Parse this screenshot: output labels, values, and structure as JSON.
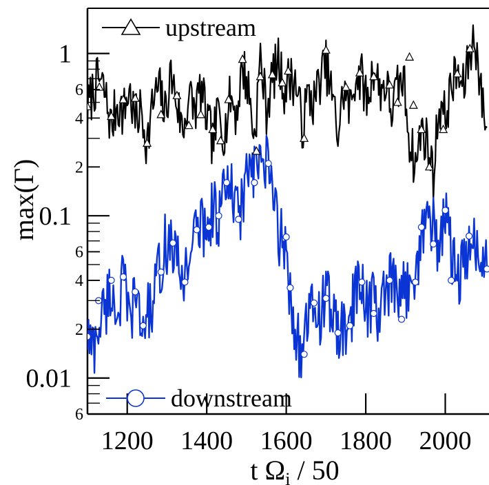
{
  "chart_data": {
    "type": "line",
    "xlabel": "t Ω",
    "xlabel_sub": "i",
    "xlabel_tail": " / 50",
    "ylabel": "max(Γ)",
    "xlim": [
      1100,
      2110
    ],
    "ylim": [
      0.006,
      1.9
    ],
    "yscale": "log",
    "grid": false,
    "legend": "inside-top-left and inside-bottom-left",
    "x_ticks": [
      {
        "value": 1200,
        "label": "1200"
      },
      {
        "value": 1400,
        "label": "1400"
      },
      {
        "value": 1600,
        "label": "1600"
      },
      {
        "value": 1800,
        "label": "1800"
      },
      {
        "value": 2000,
        "label": "2000"
      }
    ],
    "y_major_ticks": [
      {
        "value": 0.01,
        "label": "0.01"
      },
      {
        "value": 0.1,
        "label": "0.1"
      },
      {
        "value": 1,
        "label": "1"
      }
    ],
    "y_minor_ticks": [
      {
        "value": 0.006,
        "label": "6"
      },
      {
        "value": 0.02,
        "label": "2"
      },
      {
        "value": 0.04,
        "label": "4"
      },
      {
        "value": 0.06,
        "label": "6"
      },
      {
        "value": 0.2,
        "label": "2"
      },
      {
        "value": 0.4,
        "label": "4"
      },
      {
        "value": 0.6,
        "label": "6"
      }
    ],
    "series": [
      {
        "name": "upstream",
        "color": "#000000",
        "marker": "triangle",
        "x": [
          1100,
          1115,
          1130,
          1145,
          1160,
          1175,
          1190,
          1205,
          1220,
          1235,
          1250,
          1265,
          1280,
          1295,
          1310,
          1325,
          1340,
          1355,
          1370,
          1385,
          1400,
          1415,
          1430,
          1445,
          1460,
          1475,
          1490,
          1505,
          1520,
          1535,
          1550,
          1565,
          1580,
          1595,
          1610,
          1625,
          1640,
          1655,
          1670,
          1685,
          1700,
          1715,
          1730,
          1745,
          1760,
          1775,
          1790,
          1805,
          1820,
          1835,
          1850,
          1865,
          1880,
          1895,
          1910,
          1925,
          1940,
          1955,
          1970,
          1985,
          2000,
          2015,
          2030,
          2045,
          2060,
          2075,
          2090,
          2105
        ],
        "values": [
          0.45,
          0.6,
          0.7,
          0.55,
          0.35,
          0.5,
          0.42,
          0.6,
          0.38,
          0.45,
          0.28,
          0.5,
          0.62,
          0.42,
          0.75,
          0.5,
          0.33,
          0.55,
          0.45,
          0.6,
          0.4,
          0.28,
          0.45,
          0.32,
          0.55,
          0.42,
          0.85,
          0.6,
          0.3,
          0.95,
          0.45,
          0.7,
          0.9,
          0.6,
          0.72,
          0.65,
          0.35,
          0.55,
          0.5,
          0.7,
          0.85,
          0.55,
          0.32,
          0.6,
          0.45,
          0.75,
          0.7,
          0.5,
          0.85,
          0.6,
          0.65,
          0.45,
          0.6,
          0.7,
          0.3,
          0.2,
          0.35,
          0.28,
          0.18,
          0.5,
          0.4,
          0.62,
          0.75,
          0.6,
          0.95,
          1.3,
          0.55,
          0.35
        ]
      },
      {
        "name": "downstream",
        "color": "#0a35d4",
        "marker": "circle",
        "x": [
          1100,
          1115,
          1130,
          1145,
          1160,
          1175,
          1190,
          1205,
          1220,
          1235,
          1250,
          1265,
          1280,
          1295,
          1310,
          1325,
          1340,
          1355,
          1370,
          1385,
          1400,
          1415,
          1430,
          1445,
          1460,
          1475,
          1490,
          1505,
          1520,
          1535,
          1550,
          1565,
          1580,
          1595,
          1610,
          1625,
          1640,
          1655,
          1670,
          1685,
          1700,
          1715,
          1730,
          1745,
          1760,
          1775,
          1790,
          1805,
          1820,
          1835,
          1850,
          1865,
          1880,
          1895,
          1910,
          1925,
          1940,
          1955,
          1970,
          1985,
          2000,
          2015,
          2030,
          2045,
          2060,
          2075,
          2090,
          2105
        ],
        "values": [
          0.018,
          0.015,
          0.022,
          0.028,
          0.035,
          0.025,
          0.04,
          0.022,
          0.033,
          0.02,
          0.025,
          0.028,
          0.045,
          0.065,
          0.07,
          0.05,
          0.04,
          0.06,
          0.075,
          0.09,
          0.085,
          0.11,
          0.1,
          0.14,
          0.15,
          0.1,
          0.12,
          0.2,
          0.17,
          0.22,
          0.2,
          0.15,
          0.08,
          0.065,
          0.035,
          0.018,
          0.014,
          0.022,
          0.028,
          0.025,
          0.032,
          0.025,
          0.02,
          0.018,
          0.022,
          0.035,
          0.038,
          0.028,
          0.03,
          0.025,
          0.032,
          0.04,
          0.028,
          0.035,
          0.038,
          0.05,
          0.07,
          0.11,
          0.085,
          0.065,
          0.1,
          0.06,
          0.04,
          0.05,
          0.055,
          0.075,
          0.05,
          0.045
        ]
      }
    ],
    "upstream_markers": [
      {
        "x": 1100,
        "y": 0.47
      },
      {
        "x": 1130,
        "y": 0.62
      },
      {
        "x": 1160,
        "y": 0.41
      },
      {
        "x": 1190,
        "y": 0.52
      },
      {
        "x": 1220,
        "y": 0.53
      },
      {
        "x": 1250,
        "y": 0.28
      },
      {
        "x": 1285,
        "y": 0.42
      },
      {
        "x": 1325,
        "y": 0.55
      },
      {
        "x": 1355,
        "y": 0.36
      },
      {
        "x": 1385,
        "y": 0.42
      },
      {
        "x": 1415,
        "y": 0.34
      },
      {
        "x": 1435,
        "y": 0.29
      },
      {
        "x": 1455,
        "y": 0.52
      },
      {
        "x": 1490,
        "y": 0.92
      },
      {
        "x": 1525,
        "y": 0.25
      },
      {
        "x": 1535,
        "y": 0.72
      },
      {
        "x": 1565,
        "y": 0.74
      },
      {
        "x": 1590,
        "y": 0.66
      },
      {
        "x": 1605,
        "y": 0.78
      },
      {
        "x": 1645,
        "y": 0.3
      },
      {
        "x": 1700,
        "y": 1.05
      },
      {
        "x": 1750,
        "y": 0.62
      },
      {
        "x": 1785,
        "y": 0.76
      },
      {
        "x": 1820,
        "y": 0.72
      },
      {
        "x": 1860,
        "y": 0.64
      },
      {
        "x": 1880,
        "y": 0.5
      },
      {
        "x": 1910,
        "y": 0.95
      },
      {
        "x": 1920,
        "y": 0.48
      },
      {
        "x": 1940,
        "y": 0.34
      },
      {
        "x": 1960,
        "y": 0.2
      },
      {
        "x": 1995,
        "y": 0.34
      },
      {
        "x": 2030,
        "y": 0.75
      },
      {
        "x": 2062,
        "y": 1.07
      }
    ],
    "downstream_markers": [
      {
        "x": 1100,
        "y": 0.018
      },
      {
        "x": 1128,
        "y": 0.03
      },
      {
        "x": 1160,
        "y": 0.04
      },
      {
        "x": 1190,
        "y": 0.042
      },
      {
        "x": 1220,
        "y": 0.034
      },
      {
        "x": 1240,
        "y": 0.021
      },
      {
        "x": 1285,
        "y": 0.045
      },
      {
        "x": 1315,
        "y": 0.068
      },
      {
        "x": 1345,
        "y": 0.039
      },
      {
        "x": 1375,
        "y": 0.082
      },
      {
        "x": 1405,
        "y": 0.085
      },
      {
        "x": 1430,
        "y": 0.1
      },
      {
        "x": 1450,
        "y": 0.16
      },
      {
        "x": 1480,
        "y": 0.095
      },
      {
        "x": 1520,
        "y": 0.16
      },
      {
        "x": 1555,
        "y": 0.21
      },
      {
        "x": 1600,
        "y": 0.074
      },
      {
        "x": 1610,
        "y": 0.036
      },
      {
        "x": 1645,
        "y": 0.014
      },
      {
        "x": 1670,
        "y": 0.029
      },
      {
        "x": 1700,
        "y": 0.031
      },
      {
        "x": 1730,
        "y": 0.019
      },
      {
        "x": 1760,
        "y": 0.021
      },
      {
        "x": 1790,
        "y": 0.039
      },
      {
        "x": 1820,
        "y": 0.025
      },
      {
        "x": 1860,
        "y": 0.04
      },
      {
        "x": 1890,
        "y": 0.023
      },
      {
        "x": 1925,
        "y": 0.039
      },
      {
        "x": 1940,
        "y": 0.085
      },
      {
        "x": 1970,
        "y": 0.067
      },
      {
        "x": 2000,
        "y": 0.108
      },
      {
        "x": 2015,
        "y": 0.04
      },
      {
        "x": 2060,
        "y": 0.075
      },
      {
        "x": 2105,
        "y": 0.047
      }
    ]
  }
}
